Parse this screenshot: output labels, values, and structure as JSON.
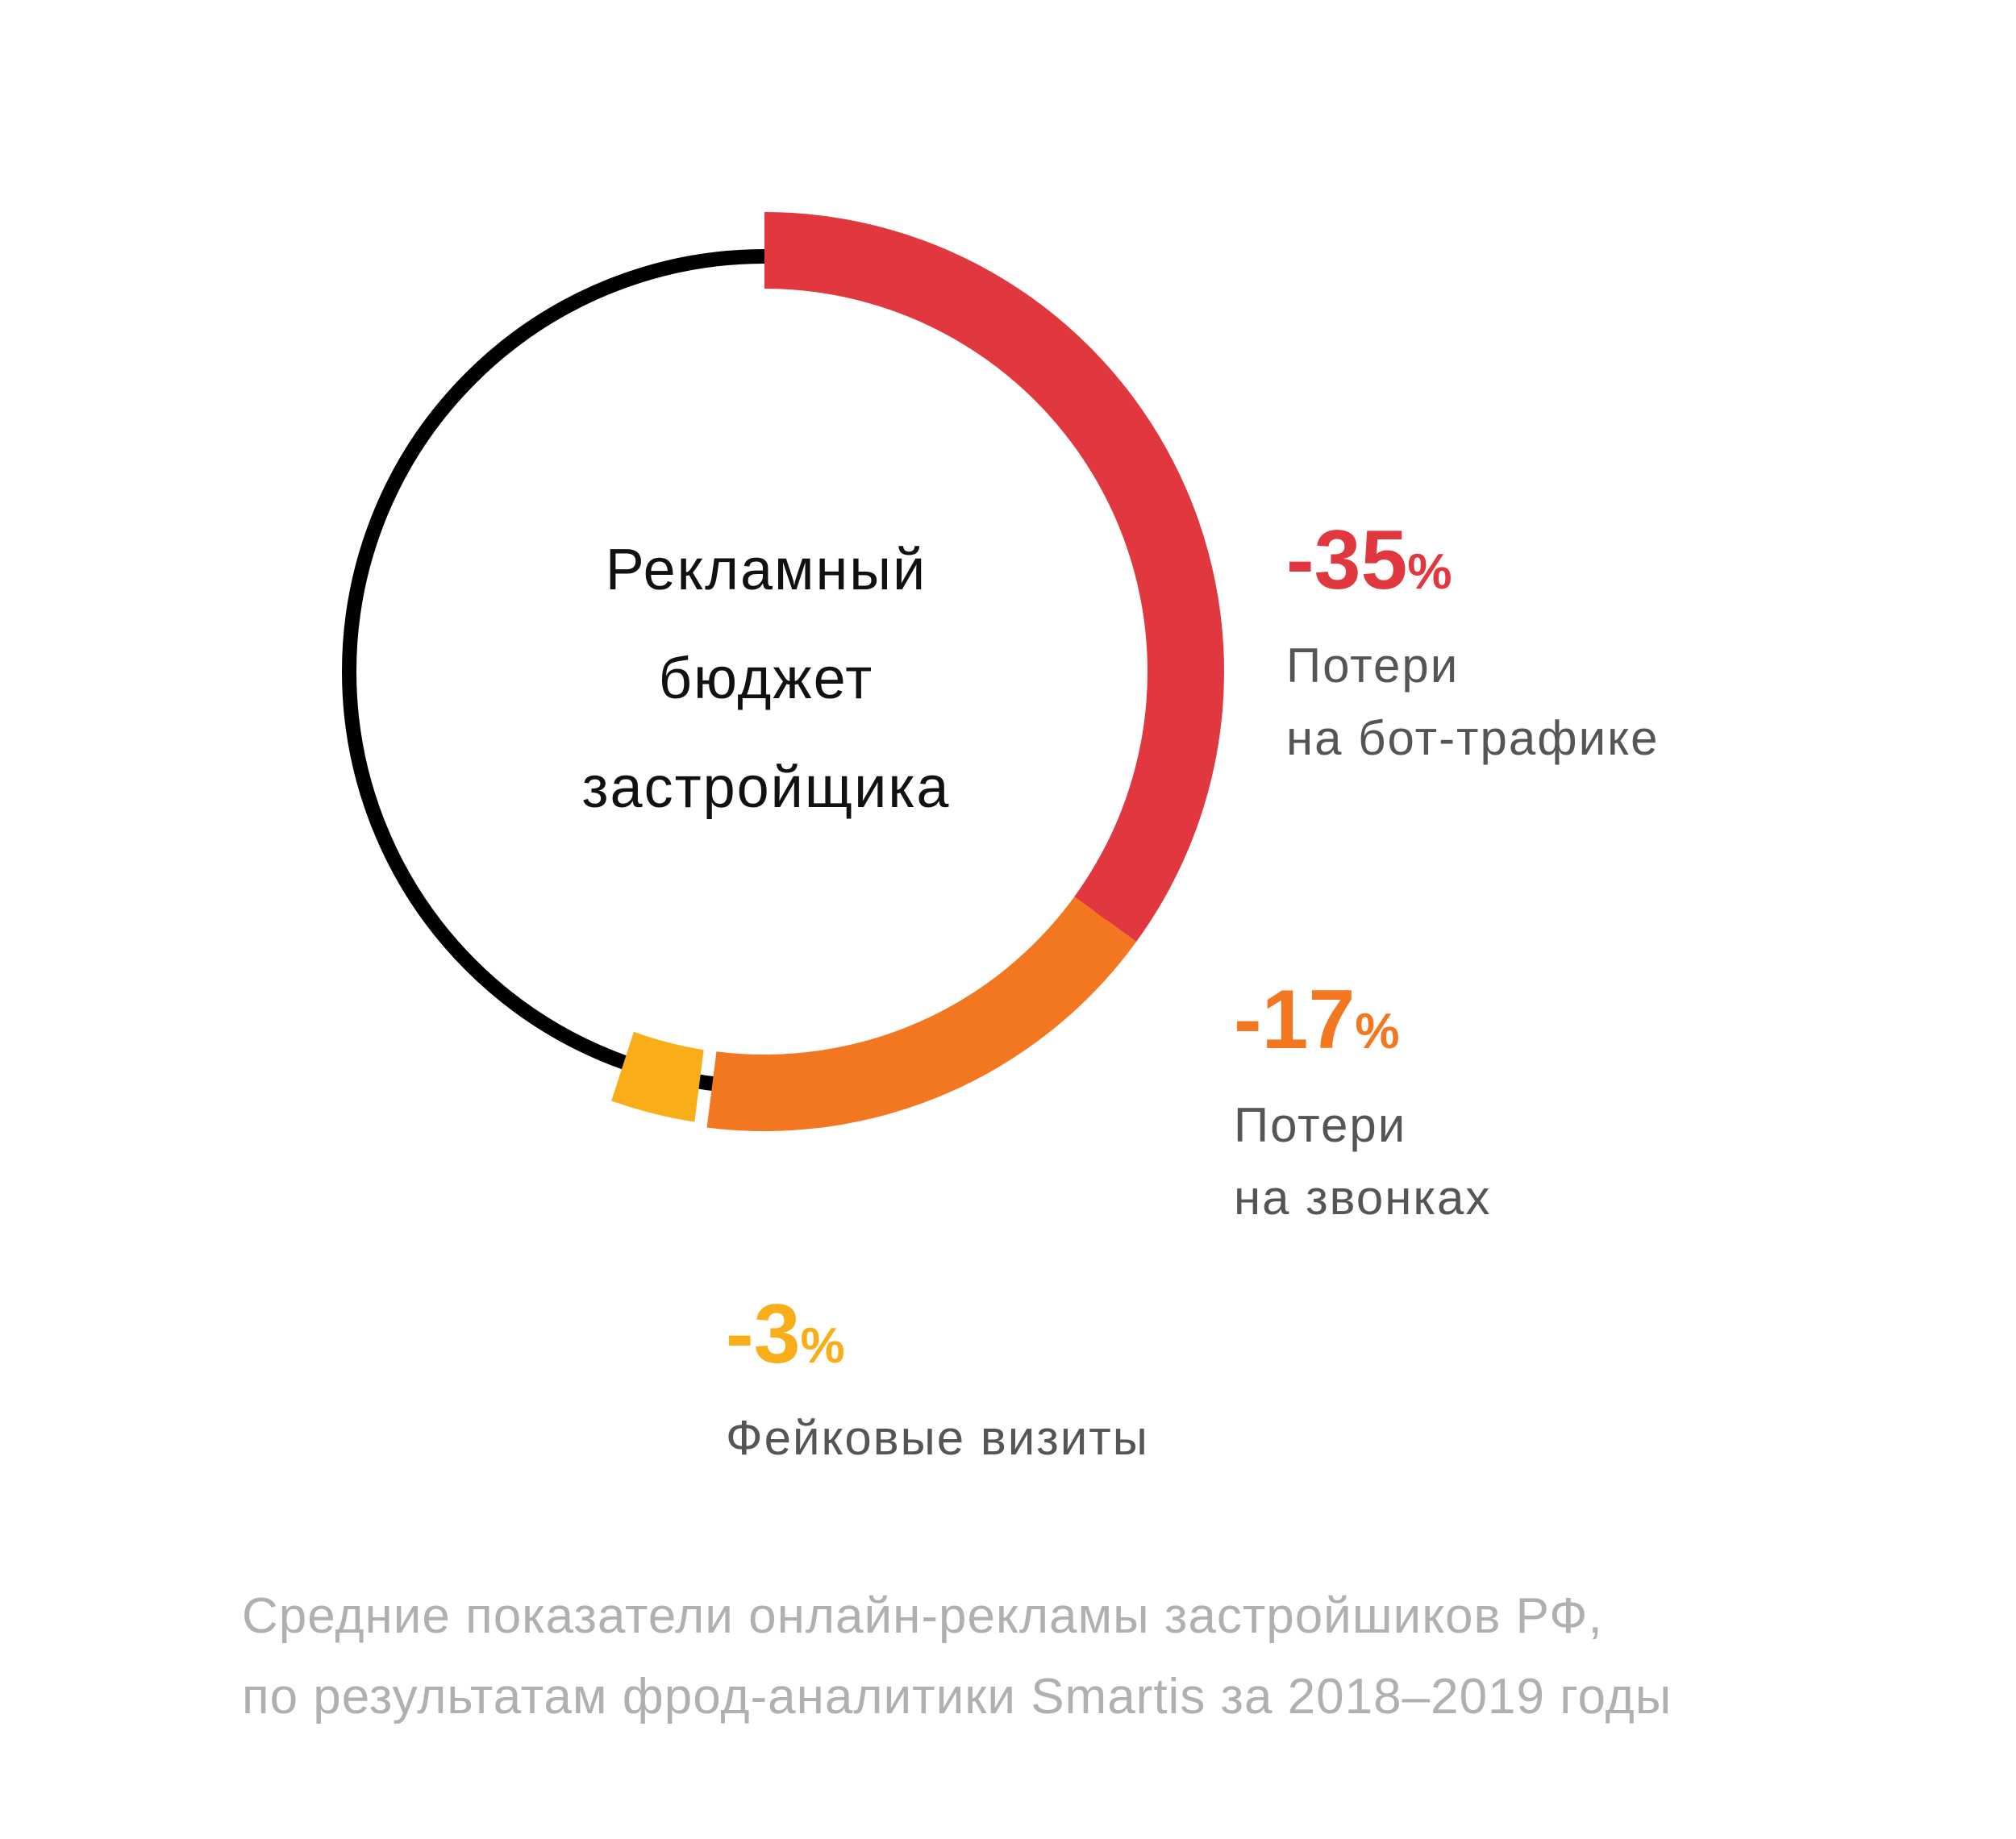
{
  "chart_data": {
    "type": "pie",
    "title": "",
    "center_label_lines": [
      "Рекламный",
      "бюджет",
      "застройщика"
    ],
    "segments": [
      {
        "value": 35,
        "value_label": "-35",
        "unit": "%",
        "desc_lines": [
          "Потери",
          "на бот-трафике"
        ],
        "color": "#E0383E"
      },
      {
        "value": 17,
        "value_label": "-17",
        "unit": "%",
        "desc_lines": [
          "Потери",
          "на звонках"
        ],
        "color": "#F37721"
      },
      {
        "value": 3,
        "value_label": "-3",
        "unit": "%",
        "desc_lines": [
          "Фейковые визиты"
        ],
        "color": "#F9AE19"
      }
    ],
    "remainder_color": "#000000"
  },
  "footnote_lines": [
    "Средние показатели онлайн-рекламы застройшиков РФ,",
    "по результатам фрод-аналитики Smartis за 2018–2019 годы"
  ]
}
